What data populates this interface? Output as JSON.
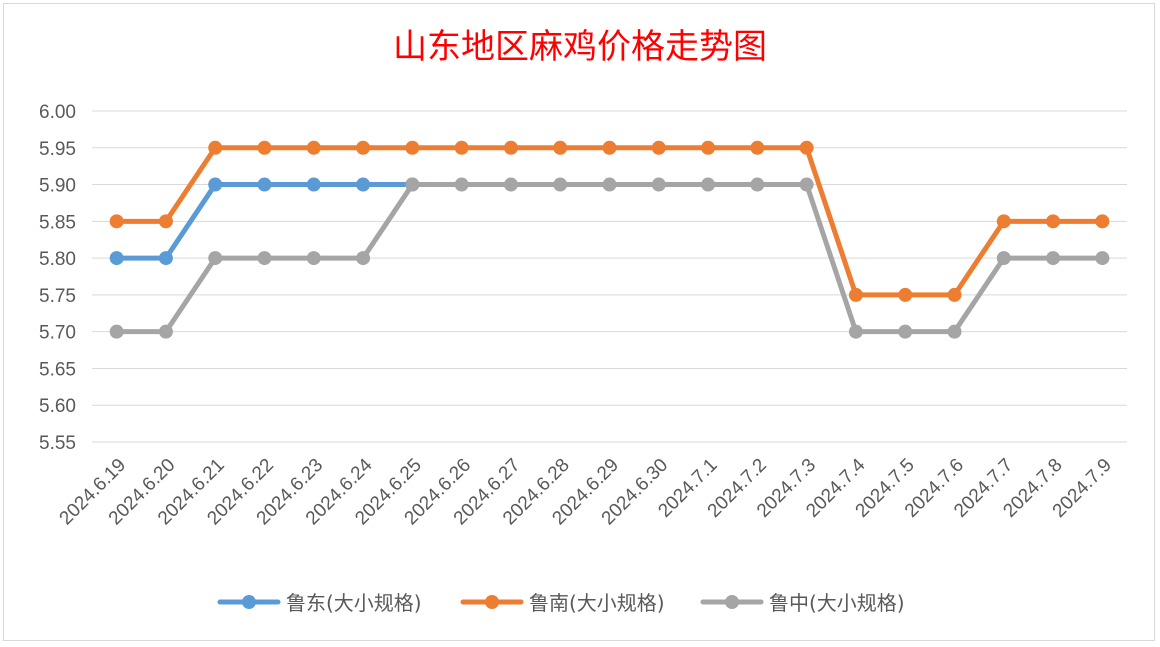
{
  "chart_data": {
    "type": "line",
    "title": "山东地区麻鸡价格走势图",
    "xlabel": "",
    "ylabel": "",
    "categories": [
      "2024.6.19",
      "2024.6.20",
      "2024.6.21",
      "2024.6.22",
      "2024.6.23",
      "2024.6.24",
      "2024.6.25",
      "2024.6.26",
      "2024.6.27",
      "2024.6.28",
      "2024.6.29",
      "2024.6.30",
      "2024.7.1",
      "2024.7.2",
      "2024.7.3",
      "2024.7.4",
      "2024.7.5",
      "2024.7.6",
      "2024.7.7",
      "2024.7.8",
      "2024.7.9"
    ],
    "yticks": [
      "5.55",
      "5.60",
      "5.65",
      "5.70",
      "5.75",
      "5.80",
      "5.85",
      "5.90",
      "5.95",
      "6.00"
    ],
    "ylim": [
      5.55,
      6.0
    ],
    "grid": true,
    "legend_position": "bottom",
    "series": [
      {
        "name": "鲁东(大小规格)",
        "color": "#5b9bd5",
        "values": [
          5.8,
          5.8,
          5.9,
          5.9,
          5.9,
          5.9,
          5.9,
          null,
          null,
          null,
          null,
          null,
          null,
          null,
          null,
          null,
          null,
          null,
          null,
          null,
          null
        ]
      },
      {
        "name": "鲁南(大小规格)",
        "color": "#ed7d31",
        "values": [
          5.85,
          5.85,
          5.95,
          5.95,
          5.95,
          5.95,
          5.95,
          5.95,
          5.95,
          5.95,
          5.95,
          5.95,
          5.95,
          5.95,
          5.95,
          5.75,
          5.75,
          5.75,
          5.85,
          5.85,
          5.85
        ]
      },
      {
        "name": "鲁中(大小规格)",
        "color": "#a5a5a5",
        "values": [
          5.7,
          5.7,
          5.8,
          5.8,
          5.8,
          5.8,
          5.9,
          5.9,
          5.9,
          5.9,
          5.9,
          5.9,
          5.9,
          5.9,
          5.9,
          5.7,
          5.7,
          5.7,
          5.8,
          5.8,
          5.8
        ]
      }
    ]
  }
}
